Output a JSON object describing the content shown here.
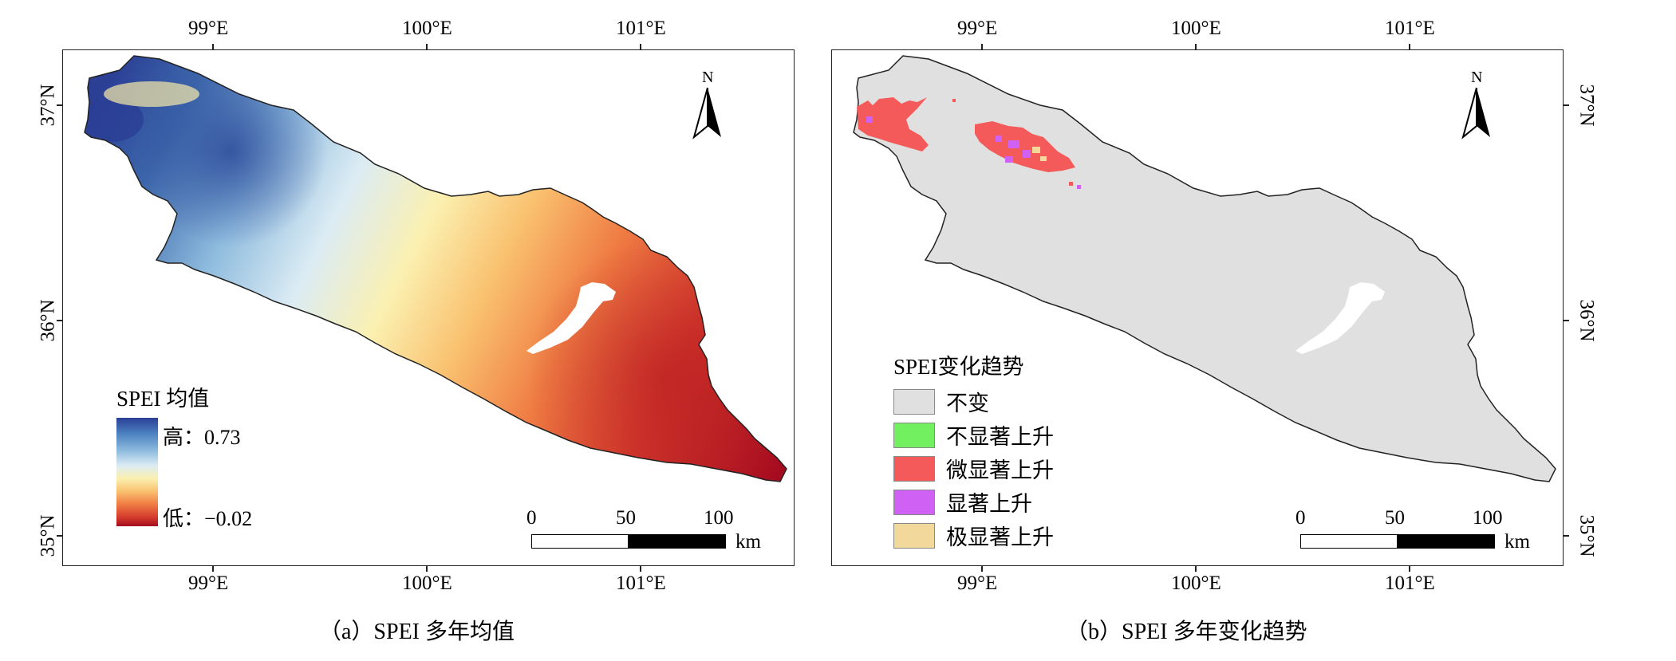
{
  "panel_a": {
    "top_ticks": [
      "99°E",
      "100°E",
      "101°E"
    ],
    "bottom_ticks": [
      "99°E",
      "100°E",
      "101°E"
    ],
    "left_ticks": [
      "37°N",
      "36°N",
      "35°N"
    ],
    "north_label": "N",
    "legend": {
      "title": "SPEI 均值",
      "high_label": "高：0.73",
      "low_label": "低：−0.02",
      "colors": [
        "#2b3f95",
        "#8cbadd",
        "#fbf0b0",
        "#ef7b43",
        "#a50b1f"
      ]
    },
    "scale": {
      "labels": [
        "0",
        "50",
        "100"
      ],
      "unit": "km"
    },
    "caption": "（a）SPEI 多年均值"
  },
  "panel_b": {
    "top_ticks": [
      "99°E",
      "100°E",
      "101°E"
    ],
    "bottom_ticks": [
      "99°E",
      "100°E",
      "101°E"
    ],
    "right_ticks": [
      "37°N",
      "36°N",
      "35°N"
    ],
    "north_label": "N",
    "legend": {
      "title": "SPEI变化趋势",
      "items": [
        {
          "label": "不变",
          "color": "#e0e0e0"
        },
        {
          "label": "不显著上升",
          "color": "#73f060"
        },
        {
          "label": "微显著上升",
          "color": "#f45a5a"
        },
        {
          "label": "显著上升",
          "color": "#cf62f5"
        },
        {
          "label": "极显著上升",
          "color": "#f3d89c"
        }
      ]
    },
    "scale": {
      "labels": [
        "0",
        "50",
        "100"
      ],
      "unit": "km"
    },
    "caption": "（b）SPEI 多年变化趋势"
  }
}
